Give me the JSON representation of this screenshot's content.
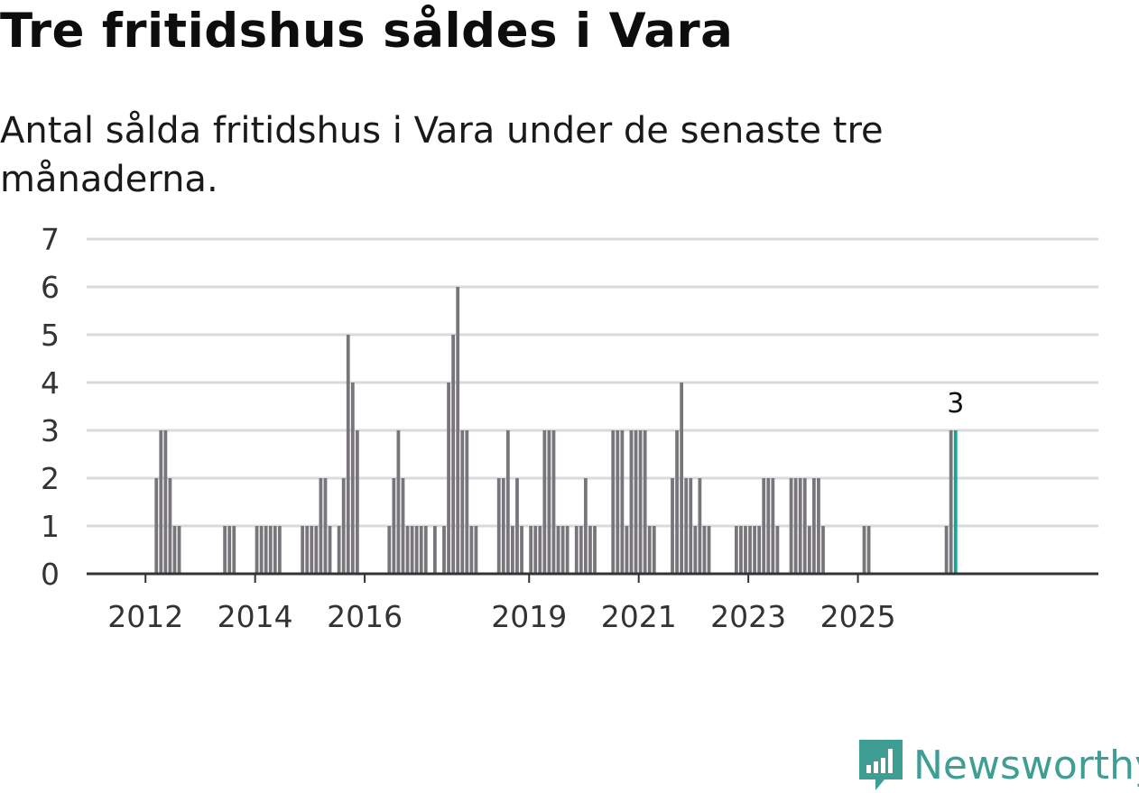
{
  "title": "Tre fritidshus såldes i Vara",
  "subtitle": "Antal sålda fritidshus i Vara under de senaste tre månaderna.",
  "brand": {
    "name": "Newsworthy",
    "color": "#3e9e94",
    "icon": "newsworthy-logo-icon"
  },
  "colors": {
    "bar": "#78767a",
    "highlight": "#15a39b",
    "grid": "#dadada",
    "axis": "#333333",
    "label": "#333333"
  },
  "chart_data": {
    "type": "bar",
    "title": "Tre fritidshus såldes i Vara",
    "xlabel": "",
    "ylabel": "",
    "ylim": [
      0,
      7
    ],
    "yticks": [
      "0",
      "1",
      "2",
      "3",
      "4",
      "5",
      "6",
      "7"
    ],
    "xticks": [
      {
        "label": "2012",
        "index": 12
      },
      {
        "label": "2014",
        "index": 36
      },
      {
        "label": "2016",
        "index": 60
      },
      {
        "label": "2019",
        "index": 96
      },
      {
        "label": "2021",
        "index": 120
      },
      {
        "label": "2023",
        "index": 144
      },
      {
        "label": "2025",
        "index": 168
      }
    ],
    "start_month": "2011-01",
    "highlight_label": "3",
    "values": [
      0,
      0,
      0,
      0,
      0,
      0,
      0,
      0,
      0,
      0,
      0,
      0,
      0,
      0,
      2,
      3,
      3,
      2,
      1,
      1,
      0,
      0,
      0,
      0,
      0,
      0,
      0,
      0,
      0,
      1,
      1,
      1,
      0,
      0,
      0,
      0,
      1,
      1,
      1,
      1,
      1,
      1,
      0,
      0,
      0,
      0,
      1,
      1,
      1,
      1,
      2,
      2,
      1,
      0,
      1,
      2,
      5,
      4,
      3,
      0,
      0,
      0,
      0,
      0,
      0,
      1,
      2,
      3,
      2,
      1,
      1,
      1,
      1,
      1,
      0,
      1,
      0,
      1,
      4,
      5,
      6,
      3,
      3,
      1,
      1,
      0,
      0,
      0,
      0,
      2,
      2,
      3,
      1,
      2,
      1,
      0,
      1,
      1,
      1,
      3,
      3,
      3,
      1,
      1,
      1,
      0,
      1,
      1,
      2,
      1,
      1,
      0,
      0,
      0,
      3,
      3,
      3,
      1,
      3,
      3,
      3,
      3,
      1,
      1,
      0,
      0,
      0,
      2,
      3,
      4,
      2,
      2,
      1,
      2,
      1,
      1,
      0,
      0,
      0,
      0,
      0,
      1,
      1,
      1,
      1,
      1,
      1,
      2,
      2,
      2,
      1,
      0,
      0,
      2,
      2,
      2,
      2,
      1,
      2,
      2,
      1,
      0,
      0,
      0,
      0,
      0,
      0,
      0,
      0,
      1,
      1,
      0,
      0,
      0,
      0,
      0,
      0,
      0,
      0,
      0,
      0,
      0,
      0,
      0,
      0,
      0,
      0,
      1,
      3,
      3
    ]
  }
}
